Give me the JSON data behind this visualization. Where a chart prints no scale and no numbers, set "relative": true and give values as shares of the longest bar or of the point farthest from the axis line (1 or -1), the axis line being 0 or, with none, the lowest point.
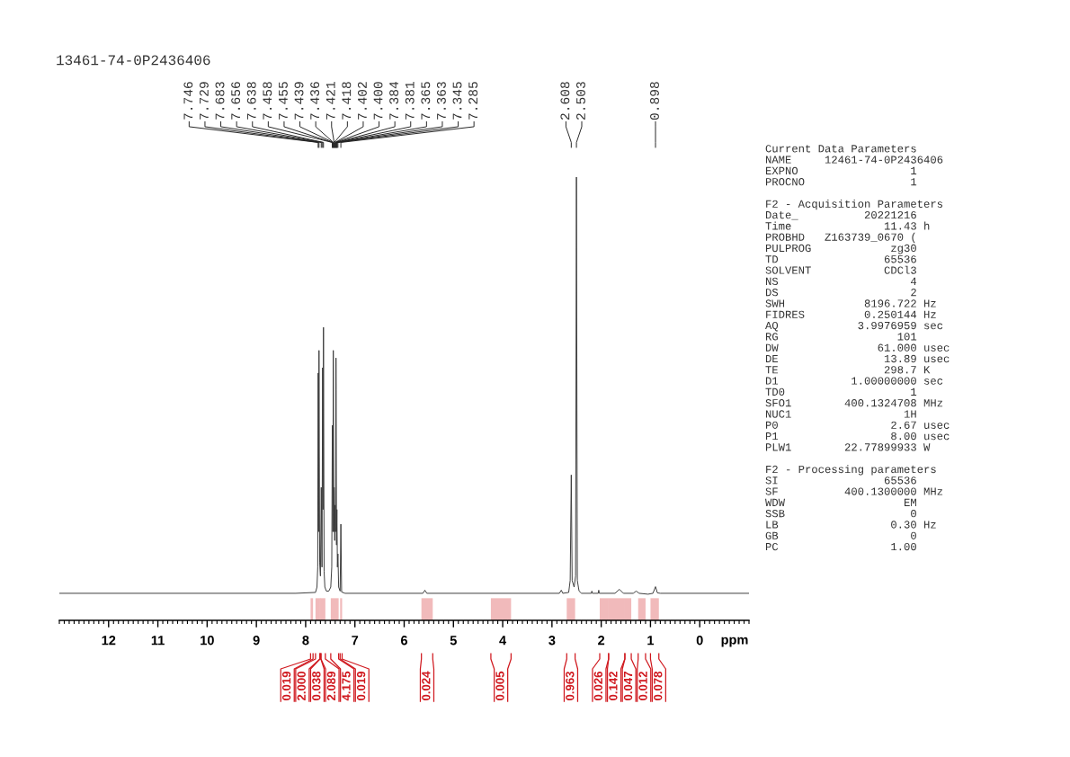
{
  "chart_data": [
    {
      "type": "line",
      "title": "13461-74-0P2436406",
      "xlabel": "ppm",
      "relative": true,
      "xlim": [
        13,
        -1
      ],
      "xticks": [
        12,
        11,
        10,
        9,
        8,
        7,
        6,
        5,
        4,
        3,
        2,
        1,
        0,
        {
          "value": 13,
          "label": null
        },
        {
          "value": 12.9,
          "label": null
        },
        {
          "value": 12.8,
          "label": null
        },
        {
          "value": 12.7,
          "label": null
        },
        {
          "value": 12.6,
          "label": null
        },
        {
          "value": 12.5,
          "label": null
        },
        {
          "value": 12.4,
          "label": null
        },
        {
          "value": 12.3,
          "label": null
        },
        {
          "value": 12.2,
          "label": null
        },
        {
          "value": 12.1,
          "label": null
        },
        {
          "value": 11.9,
          "label": null
        },
        {
          "value": 11.8,
          "label": null
        },
        {
          "value": 11.7,
          "label": null
        },
        {
          "value": 11.6,
          "label": null
        },
        {
          "value": 11.5,
          "label": null
        },
        {
          "value": 11.4,
          "label": null
        },
        {
          "value": 11.3,
          "label": null
        },
        {
          "value": 11.2,
          "label": null
        },
        {
          "value": 11.1,
          "label": null
        },
        {
          "value": 10.9,
          "label": null
        },
        {
          "value": 10.8,
          "label": null
        },
        {
          "value": 10.7,
          "label": null
        },
        {
          "value": 10.6,
          "label": null
        },
        {
          "value": 10.5,
          "label": null
        },
        {
          "value": 10.4,
          "label": null
        },
        {
          "value": 10.3,
          "label": null
        },
        {
          "value": 10.2,
          "label": null
        },
        {
          "value": 10.1,
          "label": null
        },
        {
          "value": 9.9,
          "label": null
        },
        {
          "value": 9.8,
          "label": null
        },
        {
          "value": 9.7,
          "label": null
        },
        {
          "value": 9.6,
          "label": null
        },
        {
          "value": 9.5,
          "label": null
        },
        {
          "value": 9.4,
          "label": null
        },
        {
          "value": 9.3,
          "label": null
        },
        {
          "value": 9.2,
          "label": null
        },
        {
          "value": 9.1,
          "label": null
        },
        {
          "value": 8.9,
          "label": null
        },
        {
          "value": 8.8,
          "label": null
        },
        {
          "value": 8.7,
          "label": null
        },
        {
          "value": 8.6,
          "label": null
        },
        {
          "value": 8.5,
          "label": null
        },
        {
          "value": 8.4,
          "label": null
        },
        {
          "value": 8.3,
          "label": null
        },
        {
          "value": 8.2,
          "label": null
        },
        {
          "value": 8.1,
          "label": null
        },
        {
          "value": 7.9,
          "label": null
        },
        {
          "value": 7.8,
          "label": null
        },
        {
          "value": 7.7,
          "label": null
        },
        {
          "value": 7.6,
          "label": null
        },
        {
          "value": 7.5,
          "label": null
        },
        {
          "value": 7.4,
          "label": null
        },
        {
          "value": 7.3,
          "label": null
        },
        {
          "value": 7.2,
          "label": null
        },
        {
          "value": 7.1,
          "label": null
        },
        {
          "value": 6.9,
          "label": null
        },
        {
          "value": 6.8,
          "label": null
        },
        {
          "value": 6.7,
          "label": null
        },
        {
          "value": 6.6,
          "label": null
        },
        {
          "value": 6.5,
          "label": null
        },
        {
          "value": 6.4,
          "label": null
        },
        {
          "value": 6.3,
          "label": null
        },
        {
          "value": 6.2,
          "label": null
        },
        {
          "value": 6.1,
          "label": null
        },
        {
          "value": 5.9,
          "label": null
        },
        {
          "value": 5.8,
          "label": null
        },
        {
          "value": 5.7,
          "label": null
        },
        {
          "value": 5.6,
          "label": null
        },
        {
          "value": 5.5,
          "label": null
        },
        {
          "value": 5.4,
          "label": null
        },
        {
          "value": 5.3,
          "label": null
        },
        {
          "value": 5.2,
          "label": null
        },
        {
          "value": 5.1,
          "label": null
        },
        {
          "value": 4.9,
          "label": null
        },
        {
          "value": 4.8,
          "label": null
        },
        {
          "value": 4.7,
          "label": null
        },
        {
          "value": 4.6,
          "label": null
        },
        {
          "value": 4.5,
          "label": null
        },
        {
          "value": 4.4,
          "label": null
        },
        {
          "value": 4.3,
          "label": null
        },
        {
          "value": 4.2,
          "label": null
        },
        {
          "value": 4.1,
          "label": null
        },
        {
          "value": 3.9,
          "label": null
        },
        {
          "value": 3.8,
          "label": null
        },
        {
          "value": 3.7,
          "label": null
        },
        {
          "value": 3.6,
          "label": null
        },
        {
          "value": 3.5,
          "label": null
        },
        {
          "value": 3.4,
          "label": null
        },
        {
          "value": 3.3,
          "label": null
        },
        {
          "value": 3.2,
          "label": null
        },
        {
          "value": 3.1,
          "label": null
        },
        {
          "value": 2.9,
          "label": null
        },
        {
          "value": 2.8,
          "label": null
        },
        {
          "value": 2.7,
          "label": null
        },
        {
          "value": 2.6,
          "label": null
        },
        {
          "value": 2.5,
          "label": null
        },
        {
          "value": 2.4,
          "label": null
        },
        {
          "value": 2.3,
          "label": null
        },
        {
          "value": 2.2,
          "label": null
        },
        {
          "value": 2.1,
          "label": null
        },
        {
          "value": 1.9,
          "label": null
        },
        {
          "value": 1.8,
          "label": null
        },
        {
          "value": 1.7,
          "label": null
        },
        {
          "value": 1.6,
          "label": null
        },
        {
          "value": 1.5,
          "label": null
        },
        {
          "value": 1.4,
          "label": null
        },
        {
          "value": 1.3,
          "label": null
        },
        {
          "value": 1.2,
          "label": null
        },
        {
          "value": 1.1,
          "label": null
        },
        {
          "value": 0.9,
          "label": null
        },
        {
          "value": 0.8,
          "label": null
        },
        {
          "value": 0.7,
          "label": null
        },
        {
          "value": 0.6,
          "label": null
        },
        {
          "value": 0.5,
          "label": null
        },
        {
          "value": 0.4,
          "label": null
        },
        {
          "value": 0.3,
          "label": null
        },
        {
          "value": 0.2,
          "label": null
        },
        {
          "value": 0.1,
          "label": null
        },
        {
          "value": -0.1,
          "label": null
        },
        {
          "value": -0.2,
          "label": null
        },
        {
          "value": -0.3,
          "label": null
        },
        {
          "value": -0.4,
          "label": null
        },
        {
          "value": -0.5,
          "label": null
        },
        {
          "value": -0.6,
          "label": null
        },
        {
          "value": -0.7,
          "label": null
        },
        {
          "value": -0.8,
          "label": null
        },
        {
          "value": -0.9,
          "label": null
        },
        {
          "value": -1,
          "label": null
        }
      ],
      "series": [
        {
          "color": "#3a3a3a",
          "x": [
            13.0,
            8.2,
            7.8,
            7.77,
            7.755,
            7.746,
            7.737,
            7.729,
            7.715,
            7.7,
            7.683,
            7.668,
            7.656,
            7.647,
            7.638,
            7.625,
            7.61,
            7.58,
            7.53,
            7.49,
            7.47,
            7.458,
            7.455,
            7.447,
            7.439,
            7.436,
            7.428,
            7.421,
            7.418,
            7.41,
            7.402,
            7.4,
            7.392,
            7.384,
            7.381,
            7.373,
            7.365,
            7.363,
            7.355,
            7.345,
            7.33,
            7.3,
            7.285,
            7.27,
            7.2,
            5.62,
            5.58,
            5.54,
            2.85,
            2.81,
            2.78,
            2.66,
            2.63,
            2.608,
            2.59,
            2.55,
            2.52,
            2.503,
            2.485,
            2.45,
            2.4,
            2.2,
            2.19,
            2.18,
            2.06,
            2.05,
            2.04,
            1.72,
            1.63,
            1.55,
            1.35,
            1.29,
            1.23,
            1.05,
            0.95,
            0.898,
            0.86,
            0.8,
            -1.0
          ],
          "values": [
            0.061,
            0.061,
            0.063,
            0.075,
            0.12,
            0.558,
            0.2,
            0.609,
            0.13,
            0.1,
            0.3,
            0.12,
            0.57,
            0.25,
            0.661,
            0.11,
            0.075,
            0.066,
            0.066,
            0.075,
            0.12,
            0.44,
            0.4,
            0.2,
            0.609,
            0.55,
            0.2,
            0.3,
            0.28,
            0.18,
            0.26,
            0.25,
            0.2,
            0.592,
            0.52,
            0.17,
            0.25,
            0.22,
            0.12,
            0.15,
            0.075,
            0.066,
            0.217,
            0.064,
            0.061,
            0.061,
            0.068,
            0.061,
            0.061,
            0.068,
            0.061,
            0.063,
            0.09,
            0.328,
            0.09,
            0.075,
            0.1,
            1.0,
            0.09,
            0.066,
            0.061,
            0.061,
            0.066,
            0.061,
            0.061,
            0.068,
            0.061,
            0.061,
            0.07,
            0.061,
            0.061,
            0.066,
            0.061,
            0.059,
            0.061,
            0.076,
            0.062,
            0.061,
            0.061
          ]
        }
      ],
      "annotations": [
        {
          "text": "7.746",
          "x": 7.746
        },
        {
          "text": "7.729",
          "x": 7.729
        },
        {
          "text": "7.683",
          "x": 7.683
        },
        {
          "text": "7.656",
          "x": 7.656
        },
        {
          "text": "7.638",
          "x": 7.638
        },
        {
          "text": "7.458",
          "x": 7.458
        },
        {
          "text": "7.455",
          "x": 7.455
        },
        {
          "text": "7.439",
          "x": 7.439
        },
        {
          "text": "7.436",
          "x": 7.436
        },
        {
          "text": "7.421",
          "x": 7.421
        },
        {
          "text": "7.418",
          "x": 7.418
        },
        {
          "text": "7.402",
          "x": 7.402
        },
        {
          "text": "7.400",
          "x": 7.4
        },
        {
          "text": "7.384",
          "x": 7.384
        },
        {
          "text": "7.381",
          "x": 7.381
        },
        {
          "text": "7.365",
          "x": 7.365
        },
        {
          "text": "7.363",
          "x": 7.363
        },
        {
          "text": "7.345",
          "x": 7.345
        },
        {
          "text": "7.285",
          "x": 7.285
        },
        {
          "text": "2.608",
          "x": 2.608
        },
        {
          "text": "2.503",
          "x": 2.503
        },
        {
          "text": "0.898",
          "x": 0.898
        }
      ],
      "bands": [
        {
          "axis": "x",
          "from": 7.9,
          "to": 7.85,
          "label": "0.019",
          "color": "#d0191f"
        },
        {
          "axis": "x",
          "from": 7.8,
          "to": 7.71,
          "label": "2.000",
          "color": "#d0191f"
        },
        {
          "axis": "x",
          "from": 7.71,
          "to": 7.69,
          "label": "0.038",
          "color": "#d0191f"
        },
        {
          "axis": "x",
          "from": 7.69,
          "to": 7.6,
          "label": "2.089",
          "color": "#d0191f"
        },
        {
          "axis": "x",
          "from": 7.49,
          "to": 7.33,
          "label": "4.175",
          "color": "#d0191f"
        },
        {
          "axis": "x",
          "from": 7.3,
          "to": 7.26,
          "label": "0.019",
          "color": "#d0191f"
        },
        {
          "axis": "x",
          "from": 5.65,
          "to": 5.42,
          "label": "0.024",
          "color": "#d0191f"
        },
        {
          "axis": "x",
          "from": 4.24,
          "to": 3.83,
          "label": "0.005",
          "color": "#d0191f"
        },
        {
          "axis": "x",
          "from": 2.7,
          "to": 2.53,
          "label": "0.963",
          "color": "#d0191f"
        },
        {
          "axis": "x",
          "from": 2.03,
          "to": 1.85,
          "label": "0.026",
          "color": "#d0191f"
        },
        {
          "axis": "x",
          "from": 1.85,
          "to": 1.52,
          "label": "0.142",
          "color": "#d0191f"
        },
        {
          "axis": "x",
          "from": 1.52,
          "to": 1.39,
          "label": "0.047",
          "color": "#d0191f"
        },
        {
          "axis": "x",
          "from": 1.25,
          "to": 1.1,
          "label": "0.012",
          "color": "#d0191f"
        },
        {
          "axis": "x",
          "from": 1.0,
          "to": 0.83,
          "label": "0.078",
          "color": "#d0191f"
        }
      ]
    },
    {
      "type": "other",
      "title": "Current Data Parameters",
      "annotations": [
        "NAME     12461-74-0P2436406",
        "EXPNO                 1",
        "PROCNO                1"
      ]
    },
    {
      "type": "other",
      "title": "F2 - Acquisition Parameters",
      "annotations": [
        "Date_          20221216",
        "Time              11.43 h",
        "PROBHD   Z163739_0670 (",
        "PULPROG            zg30",
        "TD                65536",
        "SOLVENT           CDCl3",
        "NS                    4",
        "DS                    2",
        "SWH            8196.722 Hz",
        "FIDRES         0.250144 Hz",
        "AQ            3.9976959 sec",
        "RG                  101",
        "DW               61.000 usec",
        "DE                13.89 usec",
        "TE                298.7 K",
        "D1           1.00000000 sec",
        "TD0                   1",
        "SFO1        400.1324708 MHz",
        "NUC1                 1H",
        "P0                 2.67 usec",
        "P1                 8.00 usec",
        "PLW1        22.77899933 W"
      ]
    },
    {
      "type": "other",
      "title": "F2 - Processing parameters",
      "annotations": [
        "SI                65536",
        "SF          400.1300000 MHz",
        "WDW                  EM",
        "SSB                   0",
        "LB                 0.30 Hz",
        "GB                    0",
        "PC                 1.00"
      ]
    }
  ]
}
